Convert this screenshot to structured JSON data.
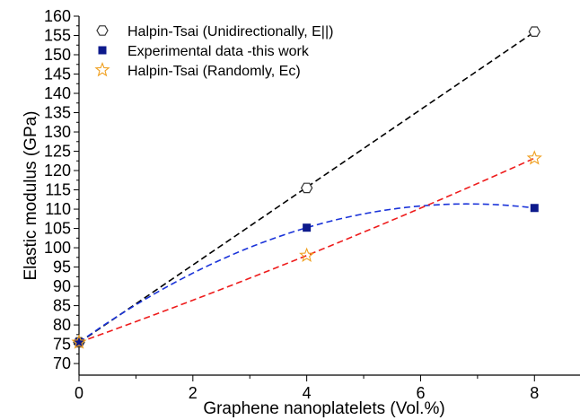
{
  "chart_data": {
    "type": "scatter",
    "xlabel": "Graphene nanoplatelets (Vol.%)",
    "ylabel": "Elastic modulus (GPa)",
    "xlim": [
      0,
      8.8
    ],
    "ylim": [
      67,
      160
    ],
    "x_ticks": [
      0,
      2,
      4,
      6,
      8
    ],
    "y_ticks": [
      70,
      75,
      80,
      85,
      90,
      95,
      100,
      105,
      110,
      115,
      120,
      125,
      130,
      135,
      140,
      145,
      150,
      155,
      160
    ],
    "grid": false,
    "legend_position": "top-left",
    "series": [
      {
        "name": "Halpin-Tsai (Unidirectionally, E||)",
        "marker": "hexagon-open",
        "color": "#333333",
        "line_color": "#000000",
        "fit": "linear",
        "x": [
          0,
          4,
          8
        ],
        "y": [
          75.5,
          115.5,
          156
        ]
      },
      {
        "name": "Experimental data -this work",
        "marker": "square-filled",
        "color": "#0d1a8c",
        "line_color": "#1a33d9",
        "fit": "quadratic",
        "x": [
          0,
          4,
          8
        ],
        "y": [
          75.5,
          105.2,
          110.3
        ]
      },
      {
        "name": "Halpin-Tsai (Randomly, Ec)",
        "marker": "star-open",
        "color": "#f0a020",
        "line_color": "#ee1c1c",
        "fit": "quadratic",
        "x": [
          0,
          4,
          8
        ],
        "y": [
          75.5,
          98,
          123.2
        ]
      }
    ]
  }
}
